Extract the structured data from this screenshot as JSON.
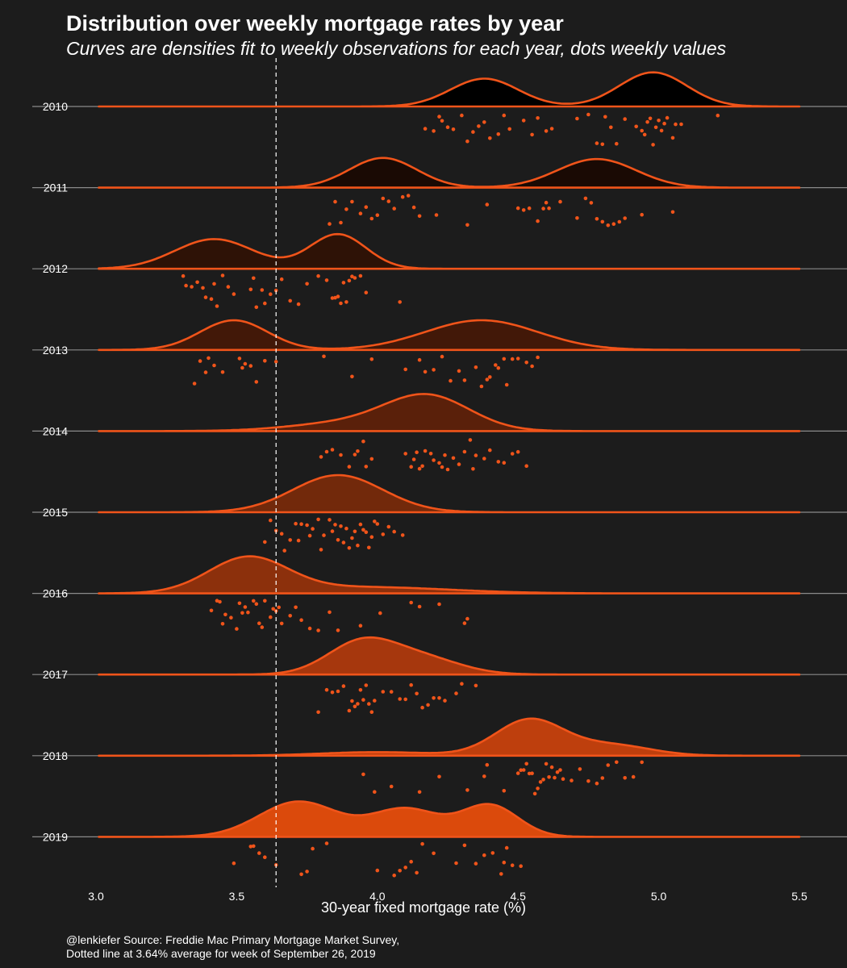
{
  "header": {
    "title": "Distribution over weekly mortgage rates by year",
    "subtitle": "Curves are densities fit to weekly observations for each year, dots weekly values"
  },
  "caption": {
    "line1": "@lenkiefer Source: Freddie Mac Primary Mortgage Market Survey,",
    "line2": "Dotted line at 3.64% average for week of September 26, 2019"
  },
  "colors": {
    "background": "#1c1c1c",
    "accent": "#f0541a",
    "baseline": "#8a8a8a",
    "reference_line": "#ffffff",
    "fills": [
      "#000000",
      "#1a0a04",
      "#2e1206",
      "#421808",
      "#5a200a",
      "#72290b",
      "#8c300c",
      "#a6370d",
      "#be3f0d",
      "#db4a0c"
    ]
  },
  "chart_data": {
    "type": "ridgeline",
    "xlabel": "30-year fixed mortgage rate (%)",
    "x_ticks": [
      "3.0",
      "3.5",
      "4.0",
      "4.5",
      "5.0",
      "5.5"
    ],
    "xlim": [
      3.0,
      5.5
    ],
    "reference_line": {
      "x": 3.64,
      "style": "dashed"
    },
    "series": [
      {
        "name": "2010",
        "peaks": [
          [
            4.38,
            0.12,
            0.75
          ],
          [
            4.98,
            0.12,
            0.92
          ]
        ],
        "points": [
          4.17,
          4.2,
          4.22,
          4.23,
          4.25,
          4.27,
          4.3,
          4.32,
          4.34,
          4.36,
          4.38,
          4.4,
          4.43,
          4.45,
          4.47,
          4.52,
          4.55,
          4.57,
          4.6,
          4.62,
          4.71,
          4.75,
          4.78,
          4.8,
          4.81,
          4.83,
          4.85,
          4.88,
          4.92,
          4.94,
          4.95,
          4.96,
          4.97,
          4.98,
          4.99,
          5.0,
          5.01,
          5.02,
          5.03,
          5.05,
          5.06,
          5.08,
          5.21
        ]
      },
      {
        "name": "2011",
        "peaks": [
          [
            4.02,
            0.12,
            0.8
          ],
          [
            4.78,
            0.14,
            0.77
          ]
        ],
        "points": [
          3.83,
          3.85,
          3.87,
          3.89,
          3.91,
          3.94,
          3.96,
          3.98,
          4.0,
          4.02,
          4.04,
          4.06,
          4.09,
          4.11,
          4.13,
          4.15,
          4.21,
          4.32,
          4.39,
          4.5,
          4.52,
          4.54,
          4.57,
          4.59,
          4.61,
          4.6,
          4.65,
          4.71,
          4.74,
          4.76,
          4.78,
          4.8,
          4.82,
          4.84,
          4.86,
          4.88,
          4.94,
          5.05
        ]
      },
      {
        "name": "2012",
        "peaks": [
          [
            3.42,
            0.14,
            0.8
          ],
          [
            3.86,
            0.1,
            0.93
          ]
        ],
        "points": [
          3.31,
          3.32,
          3.34,
          3.36,
          3.38,
          3.39,
          3.41,
          3.42,
          3.43,
          3.45,
          3.47,
          3.49,
          3.55,
          3.56,
          3.57,
          3.59,
          3.6,
          3.62,
          3.64,
          3.66,
          3.69,
          3.72,
          3.75,
          3.79,
          3.82,
          3.84,
          3.85,
          3.86,
          3.87,
          3.88,
          3.89,
          3.9,
          3.91,
          3.92,
          3.94,
          3.96,
          4.08
        ]
      },
      {
        "name": "2013",
        "peaks": [
          [
            3.49,
            0.12,
            0.8
          ],
          [
            4.37,
            0.2,
            0.8
          ]
        ],
        "points": [
          3.35,
          3.37,
          3.39,
          3.4,
          3.42,
          3.45,
          3.51,
          3.52,
          3.53,
          3.55,
          3.57,
          3.6,
          3.64,
          3.81,
          3.91,
          3.98,
          4.1,
          4.15,
          4.17,
          4.2,
          4.23,
          4.26,
          4.29,
          4.31,
          4.35,
          4.37,
          4.39,
          4.4,
          4.42,
          4.43,
          4.45,
          4.46,
          4.48,
          4.5,
          4.53,
          4.55,
          4.57
        ]
      },
      {
        "name": "2014",
        "peaks": [
          [
            4.18,
            0.15,
            1.0
          ],
          [
            3.9,
            0.2,
            0.25
          ]
        ],
        "points": [
          3.8,
          3.82,
          3.84,
          3.87,
          3.9,
          3.92,
          3.93,
          3.95,
          3.96,
          3.98,
          4.1,
          4.12,
          4.13,
          4.14,
          4.15,
          4.16,
          4.17,
          4.19,
          4.2,
          4.22,
          4.23,
          4.24,
          4.25,
          4.27,
          4.29,
          4.31,
          4.33,
          4.34,
          4.35,
          4.38,
          4.4,
          4.43,
          4.45,
          4.48,
          4.5,
          4.53
        ]
      },
      {
        "name": "2015",
        "peaks": [
          [
            3.86,
            0.16,
            1.0
          ]
        ],
        "points": [
          3.6,
          3.62,
          3.64,
          3.66,
          3.67,
          3.69,
          3.71,
          3.72,
          3.73,
          3.75,
          3.76,
          3.77,
          3.79,
          3.8,
          3.81,
          3.83,
          3.84,
          3.85,
          3.86,
          3.87,
          3.88,
          3.89,
          3.9,
          3.91,
          3.92,
          3.93,
          3.94,
          3.95,
          3.96,
          3.97,
          3.98,
          3.99,
          4.0,
          4.02,
          4.04,
          4.06,
          4.09
        ]
      },
      {
        "name": "2016",
        "peaks": [
          [
            3.54,
            0.14,
            0.98
          ],
          [
            3.95,
            0.3,
            0.18
          ]
        ],
        "points": [
          3.41,
          3.43,
          3.44,
          3.45,
          3.46,
          3.48,
          3.5,
          3.51,
          3.52,
          3.53,
          3.54,
          3.56,
          3.57,
          3.58,
          3.59,
          3.6,
          3.62,
          3.63,
          3.64,
          3.65,
          3.66,
          3.69,
          3.71,
          3.73,
          3.76,
          3.79,
          3.83,
          3.86,
          3.94,
          4.01,
          4.12,
          4.15,
          4.22,
          4.31,
          4.32
        ]
      },
      {
        "name": "2017",
        "peaks": [
          [
            3.94,
            0.12,
            0.9
          ],
          [
            4.15,
            0.14,
            0.5
          ]
        ],
        "points": [
          3.79,
          3.82,
          3.84,
          3.86,
          3.88,
          3.9,
          3.91,
          3.92,
          3.93,
          3.94,
          3.95,
          3.96,
          3.97,
          3.98,
          3.99,
          4.02,
          4.05,
          4.08,
          4.1,
          4.12,
          4.14,
          4.16,
          4.18,
          4.2,
          4.22,
          4.24,
          4.28,
          4.3,
          4.35
        ]
      },
      {
        "name": "2018",
        "peaks": [
          [
            4.54,
            0.12,
            1.0
          ],
          [
            4.83,
            0.14,
            0.3
          ],
          [
            4.0,
            0.2,
            0.1
          ]
        ],
        "points": [
          3.95,
          3.99,
          4.05,
          4.15,
          4.22,
          4.32,
          4.38,
          4.39,
          4.45,
          4.5,
          4.51,
          4.52,
          4.53,
          4.54,
          4.55,
          4.56,
          4.57,
          4.58,
          4.59,
          4.6,
          4.61,
          4.62,
          4.63,
          4.64,
          4.65,
          4.66,
          4.69,
          4.72,
          4.75,
          4.78,
          4.8,
          4.82,
          4.85,
          4.88,
          4.91,
          4.94
        ]
      },
      {
        "name": "2019",
        "peaks": [
          [
            3.72,
            0.14,
            0.95
          ],
          [
            4.1,
            0.12,
            0.75
          ],
          [
            4.4,
            0.1,
            0.85
          ]
        ],
        "points": [
          3.49,
          3.55,
          3.56,
          3.58,
          3.6,
          3.64,
          3.73,
          3.75,
          3.77,
          3.82,
          4.0,
          4.06,
          4.08,
          4.1,
          4.12,
          4.14,
          4.16,
          4.2,
          4.28,
          4.31,
          4.35,
          4.38,
          4.41,
          4.44,
          4.45,
          4.46,
          4.48,
          4.51
        ]
      }
    ]
  }
}
